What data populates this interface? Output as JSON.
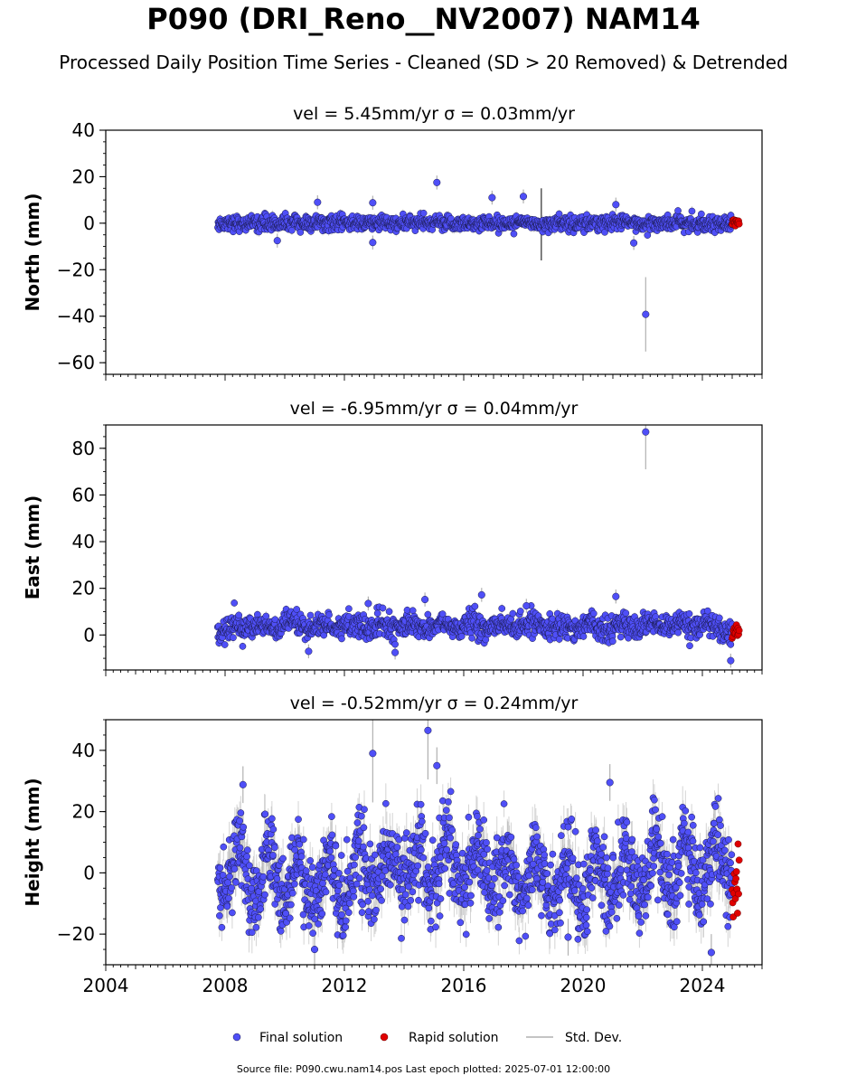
{
  "title": "P090 (DRI_Reno__NV2007) NAM14",
  "subtitle": "Processed Daily Position Time Series - Cleaned (SD > 20 Removed) & Detrended",
  "footer": "Source file: P090.cwu.nam14.pos  Last epoch plotted: 2025-07-01 12:00:00",
  "legend": {
    "final": "Final solution",
    "rapid": "Rapid solution",
    "std": "Std. Dev.",
    "placement": "bottom-center"
  },
  "colors": {
    "final": "#4f4ff7",
    "rapid": "#e00000",
    "std": "#b0b0b0"
  },
  "chart_data": [
    {
      "type": "scatter",
      "title": "vel = 5.45mm/yr   σ = 0.03mm/yr",
      "ylabel": "North (mm)",
      "xlim": [
        2004,
        2026
      ],
      "ylim": [
        -65,
        40
      ],
      "xticks": [
        2004,
        2008,
        2012,
        2016,
        2020,
        2024
      ],
      "yticks": [
        -60,
        -40,
        -20,
        0,
        20,
        40
      ],
      "data_range": [
        2007.75,
        2025.0
      ],
      "rapid_range": [
        2025.0,
        2025.5
      ],
      "series_spread": 1.6,
      "outliers": [
        {
          "x": 2015.1,
          "y": 17.5
        },
        {
          "x": 2022.1,
          "y": -39.2
        },
        {
          "x": 2012.95,
          "y": 8.8
        },
        {
          "x": 2012.95,
          "y": -8.3
        },
        {
          "x": 2016.95,
          "y": 11.0
        },
        {
          "x": 2018.0,
          "y": 11.5
        },
        {
          "x": 2011.1,
          "y": 9.0
        },
        {
          "x": 2009.75,
          "y": -7.5
        },
        {
          "x": 2021.7,
          "y": -8.5
        },
        {
          "x": 2021.1,
          "y": 8.0
        }
      ]
    },
    {
      "type": "scatter",
      "title": "vel = -6.95mm/yr   σ = 0.04mm/yr",
      "ylabel": "East (mm)",
      "xlim": [
        2004,
        2026
      ],
      "ylim": [
        -15,
        90
      ],
      "xticks": [
        2004,
        2008,
        2012,
        2016,
        2020,
        2024
      ],
      "yticks": [
        0,
        20,
        40,
        60,
        80
      ],
      "data_range": [
        2007.75,
        2025.0
      ],
      "rapid_range": [
        2025.0,
        2025.5
      ],
      "series_spread": 2.5,
      "outliers": [
        {
          "x": 2022.1,
          "y": 87.0
        },
        {
          "x": 2024.95,
          "y": -11.0
        },
        {
          "x": 2016.6,
          "y": 17.2
        },
        {
          "x": 2021.1,
          "y": 16.5
        },
        {
          "x": 2014.7,
          "y": 15.2
        },
        {
          "x": 2010.8,
          "y": -7.0
        },
        {
          "x": 2013.7,
          "y": -7.5
        },
        {
          "x": 2012.8,
          "y": 13.5
        },
        {
          "x": 2018.1,
          "y": 12.5
        }
      ]
    },
    {
      "type": "scatter",
      "title": "vel = -0.52mm/yr   σ = 0.24mm/yr",
      "ylabel": "Height (mm)",
      "xlim": [
        2004,
        2026
      ],
      "ylim": [
        -30,
        50
      ],
      "xticks": [
        2004,
        2008,
        2012,
        2016,
        2020,
        2024
      ],
      "yticks": [
        -20,
        0,
        20,
        40
      ],
      "xtick_labels": [
        "2004",
        "2008",
        "2012",
        "2016",
        "2020",
        "2024"
      ],
      "data_range": [
        2007.75,
        2025.0
      ],
      "rapid_range": [
        2025.0,
        2025.5
      ],
      "series_spread": 6.5,
      "outliers": [
        {
          "x": 2014.8,
          "y": 46.5
        },
        {
          "x": 2012.95,
          "y": 39.0
        },
        {
          "x": 2024.3,
          "y": -26.0
        },
        {
          "x": 2011.0,
          "y": -25.0
        },
        {
          "x": 2008.6,
          "y": 28.8
        },
        {
          "x": 2015.1,
          "y": 35.0
        },
        {
          "x": 2020.9,
          "y": 29.5
        },
        {
          "x": 2019.5,
          "y": -21.0
        }
      ]
    }
  ]
}
